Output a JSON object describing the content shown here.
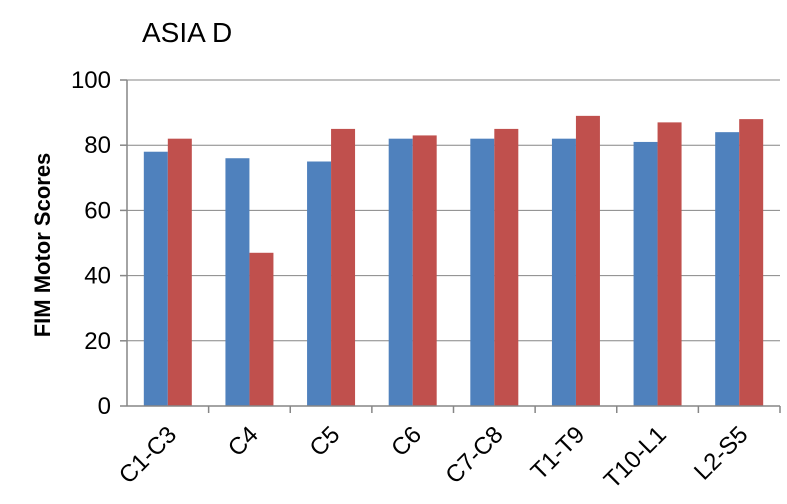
{
  "chart_data": {
    "type": "bar",
    "title": "ASIA D",
    "xlabel": "",
    "ylabel": "FIM Motor Scores",
    "ylim": [
      0,
      100
    ],
    "yticks": [
      0,
      20,
      40,
      60,
      80,
      100
    ],
    "grid": true,
    "legend": "none",
    "categories": [
      "C1-C3",
      "C4",
      "C5",
      "C6",
      "C7-C8",
      "T1-T9",
      "T10-L1",
      "L2-S5"
    ],
    "series": [
      {
        "values": [
          78,
          76,
          75,
          82,
          82,
          82,
          81,
          84
        ],
        "color": "#4F81BD"
      },
      {
        "values": [
          82,
          47,
          85,
          83,
          85,
          89,
          87,
          88
        ],
        "color": "#C0504D"
      }
    ]
  }
}
